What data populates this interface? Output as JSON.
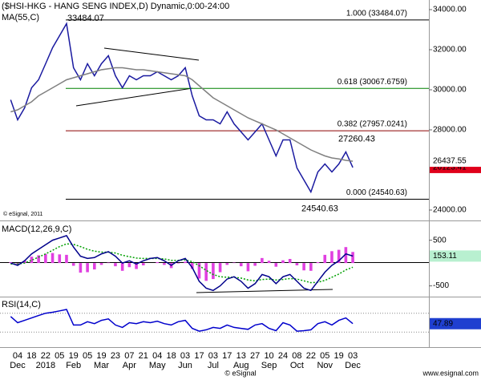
{
  "chart_data": [
    {
      "type": "line",
      "title": "($HSI-HKG - HANG SENG INDEX,D) Dynamic,0:00-24:00",
      "watermark": "© eSignal, 2011",
      "categories": [
        null,
        "04",
        null,
        "18",
        null,
        "22",
        null,
        "05",
        null,
        "19",
        null,
        "05",
        null,
        "19",
        null,
        "23",
        null,
        "07",
        null,
        "21",
        null,
        "04",
        null,
        "18",
        null,
        "03",
        null,
        "17",
        null,
        "03",
        null,
        "17",
        null,
        "13",
        null,
        "27",
        null,
        "10",
        null,
        "24",
        null,
        "08",
        null,
        "22",
        null,
        "05",
        null,
        "19",
        null,
        "03"
      ],
      "month_labels": [
        null,
        "Dec",
        null,
        null,
        null,
        "2018",
        null,
        null,
        null,
        "Feb",
        null,
        null,
        null,
        "Mar",
        null,
        null,
        null,
        "Apr",
        null,
        null,
        null,
        "May",
        null,
        null,
        null,
        "Jun",
        null,
        null,
        null,
        "Jul",
        null,
        null,
        null,
        "Aug",
        null,
        null,
        null,
        "Sep",
        null,
        null,
        null,
        "Oct",
        null,
        null,
        null,
        "Nov",
        null,
        null,
        null,
        "Dec"
      ],
      "ylim": [
        23600,
        34400
      ],
      "yticks": [
        {
          "value": 24000,
          "label": "24000.00"
        },
        {
          "value": 28000,
          "label": "28000.00"
        },
        {
          "value": 30000,
          "label": "30000.00"
        },
        {
          "value": 32000,
          "label": "32000.00"
        },
        {
          "value": 34000,
          "label": "34000.00"
        }
      ],
      "series": [
        {
          "color": "#1a1aa0",
          "label_bg": "#e0001b",
          "label_color": "#ffffff",
          "values": [
            29500,
            28500,
            29100,
            30100,
            30500,
            31300,
            32100,
            32700,
            33300,
            31100,
            30500,
            31300,
            30700,
            31300,
            31700,
            30700,
            30100,
            30700,
            30500,
            30700,
            30700,
            30900,
            30700,
            30500,
            30700,
            31100,
            29700,
            28700,
            28500,
            28500,
            28300,
            28900,
            28300,
            27900,
            27500,
            27900,
            28300,
            27500,
            26700,
            27500,
            27500,
            26100,
            25500,
            24900,
            25900,
            26300,
            25900,
            26300,
            26900,
            26123.41
          ]
        },
        {
          "name": "MA(55,C)",
          "color": "#808080",
          "label_bg": "#ffffff",
          "label_color": "#808080",
          "values": [
            28900,
            29000,
            29200,
            29400,
            29700,
            29900,
            30100,
            30300,
            30500,
            30600,
            30700,
            30800,
            30900,
            31000,
            31050,
            31100,
            31100,
            31050,
            31000,
            31000,
            30950,
            30900,
            30850,
            30800,
            30750,
            30700,
            30500,
            30200,
            29900,
            29600,
            29400,
            29200,
            29000,
            28800,
            28600,
            28450,
            28300,
            28150,
            28000,
            27800,
            27600,
            27400,
            27200,
            27000,
            26850,
            26700,
            26600,
            26550,
            26480,
            26437.55
          ]
        }
      ],
      "levels": [
        {
          "label": "1.000 (33484.07)",
          "value": 33484.07,
          "color": "#000000"
        },
        {
          "label": "0.618 (30067.6759)",
          "value": 30067.6759,
          "color": "#008000"
        },
        {
          "label": "0.382 (27957.0241)",
          "value": 27957.0241,
          "color": "#8b0000"
        },
        {
          "label": "0.000 (24540.63)",
          "value": 24540.63,
          "color": "#000000"
        }
      ],
      "annotations": [
        {
          "label": "33484.07",
          "value": 33484.07
        },
        {
          "label": "27260.43",
          "value": 27260.43
        },
        {
          "label": "24540.63",
          "value": 24540.63
        }
      ]
    },
    {
      "type": "line",
      "title": "MACD(12,26,9,C)",
      "ylim": [
        -700,
        880
      ],
      "yticks": [
        500,
        -500
      ],
      "series": [
        {
          "style": "bar",
          "color": "#e040e0",
          "values": [
            20,
            -30,
            50,
            140,
            170,
            200,
            220,
            190,
            180,
            -60,
            -210,
            -200,
            -140,
            -40,
            10,
            -70,
            -170,
            -90,
            -130,
            -50,
            0,
            20,
            -40,
            -110,
            -10,
            30,
            -130,
            -340,
            -390,
            -350,
            -200,
            -40,
            10,
            -70,
            -180,
            -60,
            110,
            50,
            -80,
            60,
            90,
            -50,
            -160,
            -170,
            20,
            180,
            260,
            290,
            350,
            243
          ]
        },
        {
          "style": "dotted",
          "color": "#00a000",
          "values": [
            -20,
            -20,
            0,
            60,
            130,
            200,
            280,
            360,
            420,
            410,
            360,
            300,
            260,
            240,
            240,
            220,
            170,
            140,
            110,
            100,
            100,
            100,
            90,
            60,
            60,
            70,
            30,
            -60,
            -160,
            -250,
            -300,
            -310,
            -310,
            -330,
            -370,
            -390,
            -360,
            -350,
            -370,
            -360,
            -340,
            -350,
            -390,
            -430,
            -420,
            -380,
            -310,
            -240,
            -150,
            -90
          ]
        },
        {
          "color": "#00008b",
          "label_bg": "#b8f0d0",
          "label_color": "#000080",
          "values": [
            0,
            -50,
            50,
            200,
            300,
            400,
            500,
            550,
            600,
            350,
            150,
            100,
            120,
            200,
            250,
            150,
            0,
            50,
            -20,
            50,
            100,
            120,
            50,
            -50,
            50,
            100,
            -100,
            -400,
            -550,
            -600,
            -500,
            -350,
            -300,
            -400,
            -550,
            -450,
            -250,
            -300,
            -450,
            -300,
            -250,
            -400,
            -550,
            -600,
            -400,
            -200,
            -50,
            50,
            200,
            153.11
          ]
        }
      ]
    },
    {
      "type": "line",
      "title": "RSI(14,C)",
      "ylim": [
        0,
        100
      ],
      "levels": [
        {
          "value": 70
        },
        {
          "value": 30
        }
      ],
      "series": [
        {
          "color": "#0000cc",
          "label_bg": "#1f3fd0",
          "label_color": "#ffffff",
          "values": [
            63,
            50,
            55,
            60,
            65,
            70,
            72,
            75,
            78,
            45,
            45,
            52,
            48,
            55,
            58,
            45,
            40,
            50,
            48,
            52,
            50,
            53,
            48,
            45,
            52,
            55,
            38,
            32,
            35,
            40,
            38,
            45,
            40,
            38,
            36,
            45,
            48,
            38,
            33,
            50,
            45,
            32,
            33,
            35,
            48,
            52,
            45,
            55,
            60,
            47.89
          ]
        }
      ]
    }
  ],
  "footer": {
    "left": "© eSignal",
    "right": "www.esignal.com"
  }
}
